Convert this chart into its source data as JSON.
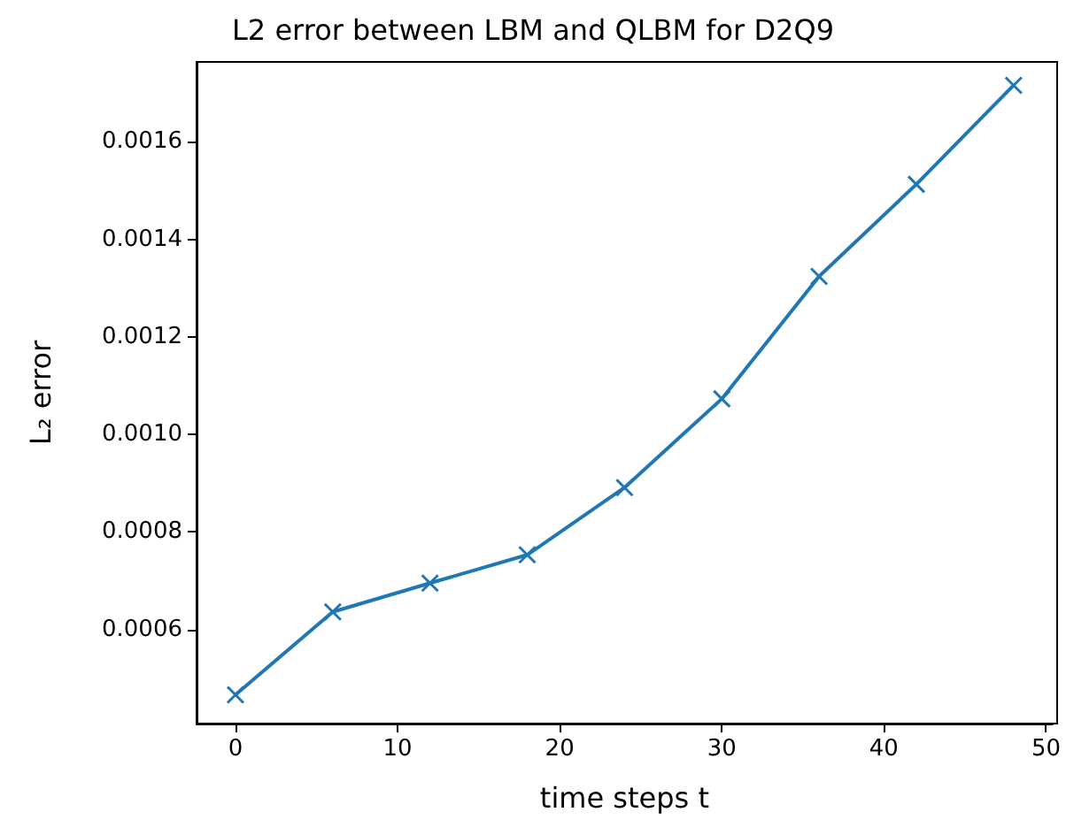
{
  "chart_data": {
    "type": "line",
    "title": "L2 error between LBM and QLBM for D2Q9",
    "xlabel": "time steps t",
    "ylabel": "L₂ error",
    "x": [
      0,
      6,
      12,
      18,
      24,
      30,
      36,
      42,
      48
    ],
    "series": [
      {
        "color": "#1f77b4",
        "values": [
          0.000466,
          0.000636,
          0.000695,
          0.000753,
          0.000891,
          0.001073,
          0.001324,
          0.001513,
          0.001716
        ]
      }
    ],
    "xlim": [
      -2.4,
      50.4
    ],
    "xticks": [
      0,
      10,
      20,
      30,
      40,
      50
    ],
    "ylim": [
      0.000407,
      0.001764
    ],
    "yticks": [
      0.0006,
      0.0008,
      {
        "value": 0.001,
        "label": "0.0010"
      },
      0.0012,
      0.0014,
      0.0016
    ],
    "grid": false,
    "marker": "cross",
    "line_style": "solid"
  }
}
